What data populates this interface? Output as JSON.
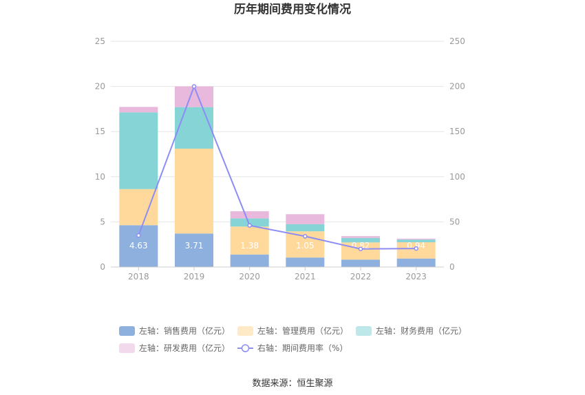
{
  "chart_data": {
    "type": "bar",
    "title": "历年期间费用变化情况",
    "categories": [
      "2018",
      "2019",
      "2020",
      "2021",
      "2022",
      "2023"
    ],
    "stacked": true,
    "series": [
      {
        "name": "左轴：销售费用（亿元）",
        "axis": "left",
        "type": "bar",
        "color": "#8eb0de",
        "values": [
          4.63,
          3.71,
          1.38,
          1.05,
          0.82,
          0.94
        ],
        "labels": [
          "4.63",
          "3.71",
          "1.38",
          "1.05",
          "0.82",
          "0.94"
        ]
      },
      {
        "name": "左轴：管理费用（亿元）",
        "axis": "left",
        "type": "bar",
        "color": "#ffd89b",
        "values": [
          4.0,
          9.4,
          3.1,
          2.9,
          1.9,
          1.8
        ]
      },
      {
        "name": "左轴：财务费用（亿元）",
        "axis": "left",
        "type": "bar",
        "color": "#86d4d6",
        "values": [
          8.5,
          4.6,
          0.9,
          0.8,
          0.5,
          0.3
        ]
      },
      {
        "name": "左轴：研发费用（亿元）",
        "axis": "left",
        "type": "bar",
        "color": "#e8b9dd",
        "values": [
          0.6,
          2.3,
          0.8,
          1.1,
          0.2,
          0.1
        ]
      },
      {
        "name": "右轴：期间费用率（%）",
        "axis": "right",
        "type": "line",
        "color": "#8c8cf5",
        "values": [
          35,
          200,
          46,
          34,
          20,
          20.5
        ]
      }
    ],
    "y_left": {
      "min": 0,
      "max": 25,
      "ticks": [
        0,
        5,
        10,
        15,
        20,
        25
      ]
    },
    "y_right": {
      "min": 0,
      "max": 250,
      "ticks": [
        0,
        50,
        100,
        150,
        200,
        250
      ]
    },
    "grid": true,
    "legend_placement": "bottom"
  },
  "source": "数据来源：恒生聚源"
}
